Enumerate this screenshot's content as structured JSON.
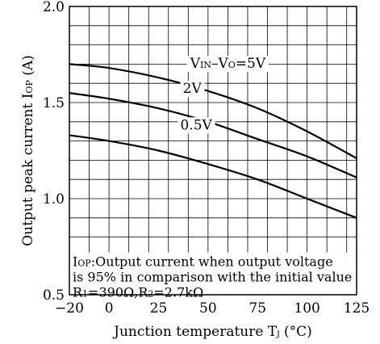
{
  "chart_data": {
    "type": "line",
    "xlabel": "Junction temperature T",
    "xlabel_sub": "j",
    "xlabel_unit": " (°C)",
    "ylabel": "Output peak current I",
    "ylabel_sub": "OP",
    "ylabel_unit": " (A)",
    "xlim": [
      -20,
      125
    ],
    "ylim": [
      0.5,
      2.0
    ],
    "x_ticks": [
      -20,
      0,
      25,
      50,
      75,
      100,
      125
    ],
    "x_tick_labels": [
      "−20",
      "0",
      "25",
      "50",
      "75",
      "100",
      "125"
    ],
    "y_ticks": [
      0.5,
      1.0,
      1.5,
      2.0
    ],
    "y_tick_labels": [
      "0.5",
      "1.0",
      "1.5",
      "2.0"
    ],
    "x_grid_step": 10,
    "y_grid_step": 0.1,
    "grid": true,
    "series": [
      {
        "name_parts": [
          "V",
          "IN",
          "–V",
          "O",
          "=5V"
        ],
        "x": [
          -20,
          0,
          25,
          50,
          75,
          100,
          125
        ],
        "y": [
          1.7,
          1.68,
          1.63,
          1.56,
          1.47,
          1.35,
          1.21
        ]
      },
      {
        "name_parts": [
          "2V"
        ],
        "x": [
          -20,
          0,
          25,
          50,
          75,
          100,
          125
        ],
        "y": [
          1.55,
          1.52,
          1.47,
          1.4,
          1.31,
          1.22,
          1.11
        ]
      },
      {
        "name_parts": [
          "0.5V"
        ],
        "x": [
          -20,
          0,
          25,
          50,
          75,
          100,
          125
        ],
        "y": [
          1.33,
          1.3,
          1.25,
          1.18,
          1.1,
          1.0,
          0.9
        ]
      }
    ],
    "annotation": {
      "line1_sub": "OP",
      "line1_pre": "I",
      "line1_text": ":Output current when output voltage",
      "line2": "is 95% in comparison with the initial value",
      "line3_parts": [
        "R",
        "1",
        "=390Ω,R",
        "2",
        "=2.7kΩ"
      ]
    }
  }
}
